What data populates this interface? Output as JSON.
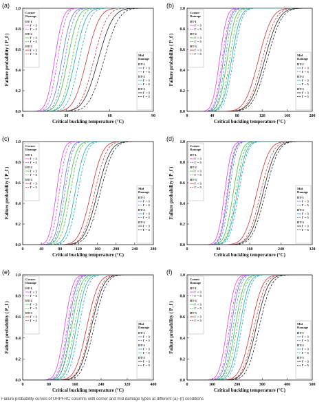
{
  "caption": "Failure probability curves of UHPFRC columns with corner and mid damage types at different (a)–(f) conditions",
  "legend": {
    "corner_title": [
      "Corner",
      "Damage"
    ],
    "mid_title": [
      "Mid",
      "Damage"
    ],
    "groups": [
      {
        "name": "DT-1",
        "items": [
          "l' = 3",
          "l' = 5"
        ]
      },
      {
        "name": "DT-2",
        "items": [
          "l' = 3",
          "l' = 5"
        ]
      },
      {
        "name": "DT-3",
        "items": [
          "l' = 3",
          "l' = 5"
        ]
      }
    ]
  },
  "colors": {
    "DT-1": "#e040e0",
    "DT-2": "#3fbf3f",
    "DT-3": "#d03030",
    "DT-1-mid": "#5a78d8",
    "DT-2-mid": "#20a8b0",
    "DT-3-mid": "#222222"
  },
  "chart_data": [
    {
      "panel": "(a)",
      "type": "line",
      "xlabel": "Critical buckling temperature (°C)",
      "ylabel": "Failure probability ( P_f )",
      "xlim": [
        0,
        90
      ],
      "ylim": [
        0,
        1.0
      ],
      "xticks": [
        0,
        30,
        60,
        90
      ],
      "yticks": [
        0.0,
        0.2,
        0.4,
        0.6,
        0.8,
        1.0
      ],
      "series": [
        {
          "group": "corner",
          "dt": "DT-1",
          "l": 3,
          "mean": 22,
          "sd": 4.5
        },
        {
          "group": "corner",
          "dt": "DT-1",
          "l": 5,
          "mean": 24,
          "sd": 4.5
        },
        {
          "group": "corner",
          "dt": "DT-2",
          "l": 3,
          "mean": 31,
          "sd": 5.5
        },
        {
          "group": "corner",
          "dt": "DT-2",
          "l": 5,
          "mean": 34,
          "sd": 5.5
        },
        {
          "group": "corner",
          "dt": "DT-3",
          "l": 3,
          "mean": 44,
          "sd": 7
        },
        {
          "group": "corner",
          "dt": "DT-3",
          "l": 5,
          "mean": 49,
          "sd": 7
        },
        {
          "group": "mid",
          "dt": "DT-1",
          "l": 3,
          "mean": 27,
          "sd": 5
        },
        {
          "group": "mid",
          "dt": "DT-1",
          "l": 5,
          "mean": 29,
          "sd": 5
        },
        {
          "group": "mid",
          "dt": "DT-2",
          "l": 3,
          "mean": 36,
          "sd": 6
        },
        {
          "group": "mid",
          "dt": "DT-2",
          "l": 5,
          "mean": 39,
          "sd": 6
        },
        {
          "group": "mid",
          "dt": "DT-3",
          "l": 3,
          "mean": 52,
          "sd": 8
        },
        {
          "group": "mid",
          "dt": "DT-3",
          "l": 5,
          "mean": 56,
          "sd": 8
        }
      ]
    },
    {
      "panel": "(b)",
      "type": "line",
      "xlabel": "Critical buckling temperature (°C)",
      "ylabel": "Failure probability ( P_f )",
      "xlim": [
        0,
        200
      ],
      "ylim": [
        0,
        1.0
      ],
      "xticks": [
        0,
        40,
        80,
        120,
        160,
        200
      ],
      "yticks": [
        0.0,
        0.2,
        0.4,
        0.6,
        0.8,
        1.0
      ],
      "series": [
        {
          "group": "corner",
          "dt": "DT-1",
          "l": 3,
          "mean": 52,
          "sd": 9
        },
        {
          "group": "corner",
          "dt": "DT-1",
          "l": 5,
          "mean": 56,
          "sd": 9
        },
        {
          "group": "corner",
          "dt": "DT-2",
          "l": 3,
          "mean": 64,
          "sd": 10
        },
        {
          "group": "corner",
          "dt": "DT-2",
          "l": 5,
          "mean": 68,
          "sd": 10
        },
        {
          "group": "corner",
          "dt": "DT-3",
          "l": 3,
          "mean": 114,
          "sd": 17
        },
        {
          "group": "corner",
          "dt": "DT-3",
          "l": 5,
          "mean": 120,
          "sd": 17
        },
        {
          "group": "mid",
          "dt": "DT-1",
          "l": 3,
          "mean": 58,
          "sd": 9
        },
        {
          "group": "mid",
          "dt": "DT-1",
          "l": 5,
          "mean": 61,
          "sd": 9
        },
        {
          "group": "mid",
          "dt": "DT-2",
          "l": 3,
          "mean": 71,
          "sd": 11
        },
        {
          "group": "mid",
          "dt": "DT-2",
          "l": 5,
          "mean": 74,
          "sd": 11
        },
        {
          "group": "mid",
          "dt": "DT-3",
          "l": 3,
          "mean": 124,
          "sd": 18
        },
        {
          "group": "mid",
          "dt": "DT-3",
          "l": 5,
          "mean": 128,
          "sd": 18
        }
      ]
    },
    {
      "panel": "(c)",
      "type": "line",
      "xlabel": "Critical buckling temperature (°C)",
      "ylabel": "Failure probability ( P_f )",
      "xlim": [
        0,
        280
      ],
      "ylim": [
        0,
        1.0
      ],
      "xticks": [
        0,
        40,
        80,
        120,
        160,
        200,
        240,
        280
      ],
      "yticks": [
        0.0,
        0.2,
        0.4,
        0.6,
        0.8,
        1.0
      ],
      "series": [
        {
          "group": "corner",
          "dt": "DT-1",
          "l": 3,
          "mean": 72,
          "sd": 12
        },
        {
          "group": "corner",
          "dt": "DT-1",
          "l": 5,
          "mean": 78,
          "sd": 12
        },
        {
          "group": "corner",
          "dt": "DT-2",
          "l": 3,
          "mean": 96,
          "sd": 15
        },
        {
          "group": "corner",
          "dt": "DT-2",
          "l": 5,
          "mean": 102,
          "sd": 15
        },
        {
          "group": "corner",
          "dt": "DT-3",
          "l": 3,
          "mean": 146,
          "sd": 20
        },
        {
          "group": "corner",
          "dt": "DT-3",
          "l": 5,
          "mean": 154,
          "sd": 20
        },
        {
          "group": "mid",
          "dt": "DT-1",
          "l": 3,
          "mean": 86,
          "sd": 13
        },
        {
          "group": "mid",
          "dt": "DT-1",
          "l": 5,
          "mean": 90,
          "sd": 13
        },
        {
          "group": "mid",
          "dt": "DT-2",
          "l": 3,
          "mean": 112,
          "sd": 16
        },
        {
          "group": "mid",
          "dt": "DT-2",
          "l": 5,
          "mean": 118,
          "sd": 16
        },
        {
          "group": "mid",
          "dt": "DT-3",
          "l": 3,
          "mean": 160,
          "sd": 22
        },
        {
          "group": "mid",
          "dt": "DT-3",
          "l": 5,
          "mean": 166,
          "sd": 22
        }
      ]
    },
    {
      "panel": "(d)",
      "type": "line",
      "xlabel": "Critical buckling temperature (°C)",
      "ylabel": "Failure probability ( P_f )",
      "xlim": [
        0,
        320
      ],
      "ylim": [
        0,
        1.0
      ],
      "xticks": [
        0,
        80,
        160,
        240,
        320
      ],
      "yticks": [
        0.0,
        0.2,
        0.4,
        0.6,
        0.8,
        1.0
      ],
      "series": [
        {
          "group": "corner",
          "dt": "DT-1",
          "l": 3,
          "mean": 96,
          "sd": 14
        },
        {
          "group": "corner",
          "dt": "DT-1",
          "l": 5,
          "mean": 102,
          "sd": 14
        },
        {
          "group": "corner",
          "dt": "DT-2",
          "l": 3,
          "mean": 118,
          "sd": 17
        },
        {
          "group": "corner",
          "dt": "DT-2",
          "l": 5,
          "mean": 124,
          "sd": 17
        },
        {
          "group": "corner",
          "dt": "DT-3",
          "l": 3,
          "mean": 178,
          "sd": 25
        },
        {
          "group": "corner",
          "dt": "DT-3",
          "l": 5,
          "mean": 188,
          "sd": 25
        },
        {
          "group": "mid",
          "dt": "DT-1",
          "l": 3,
          "mean": 104,
          "sd": 14
        },
        {
          "group": "mid",
          "dt": "DT-1",
          "l": 5,
          "mean": 108,
          "sd": 14
        },
        {
          "group": "mid",
          "dt": "DT-2",
          "l": 3,
          "mean": 128,
          "sd": 18
        },
        {
          "group": "mid",
          "dt": "DT-2",
          "l": 5,
          "mean": 132,
          "sd": 18
        },
        {
          "group": "mid",
          "dt": "DT-3",
          "l": 3,
          "mean": 194,
          "sd": 26
        },
        {
          "group": "mid",
          "dt": "DT-3",
          "l": 5,
          "mean": 200,
          "sd": 26
        }
      ]
    },
    {
      "panel": "(e)",
      "type": "line",
      "xlabel": "Critical buckling temperature (°C)",
      "ylabel": "Failure probability ( P_f )",
      "xlim": [
        0,
        400
      ],
      "ylim": [
        0,
        1.0
      ],
      "xticks": [
        0,
        80,
        160,
        240,
        320,
        400
      ],
      "yticks": [
        0.0,
        0.2,
        0.4,
        0.6,
        0.8,
        1.0
      ],
      "series": [
        {
          "group": "corner",
          "dt": "DT-1",
          "l": 3,
          "mean": 128,
          "sd": 20
        },
        {
          "group": "corner",
          "dt": "DT-1",
          "l": 5,
          "mean": 136,
          "sd": 20
        },
        {
          "group": "corner",
          "dt": "DT-2",
          "l": 3,
          "mean": 150,
          "sd": 22
        },
        {
          "group": "corner",
          "dt": "DT-2",
          "l": 5,
          "mean": 158,
          "sd": 22
        },
        {
          "group": "corner",
          "dt": "DT-3",
          "l": 3,
          "mean": 196,
          "sd": 28
        },
        {
          "group": "corner",
          "dt": "DT-3",
          "l": 5,
          "mean": 206,
          "sd": 28
        },
        {
          "group": "mid",
          "dt": "DT-1",
          "l": 3,
          "mean": 140,
          "sd": 20
        },
        {
          "group": "mid",
          "dt": "DT-1",
          "l": 5,
          "mean": 146,
          "sd": 20
        },
        {
          "group": "mid",
          "dt": "DT-2",
          "l": 3,
          "mean": 164,
          "sd": 23
        },
        {
          "group": "mid",
          "dt": "DT-2",
          "l": 5,
          "mean": 172,
          "sd": 23
        },
        {
          "group": "mid",
          "dt": "DT-3",
          "l": 3,
          "mean": 210,
          "sd": 29
        },
        {
          "group": "mid",
          "dt": "DT-3",
          "l": 5,
          "mean": 218,
          "sd": 29
        }
      ]
    },
    {
      "panel": "(f)",
      "type": "line",
      "xlabel": "Critical buckling temperature (°C)",
      "ylabel": "Failure probability ( P_f )",
      "xlim": [
        0,
        500
      ],
      "ylim": [
        0,
        1.0
      ],
      "xticks": [
        0,
        100,
        200,
        300,
        400,
        500
      ],
      "yticks": [
        0.0,
        0.2,
        0.4,
        0.6,
        0.8,
        1.0
      ],
      "series": [
        {
          "group": "corner",
          "dt": "DT-1",
          "l": 3,
          "mean": 160,
          "sd": 25
        },
        {
          "group": "corner",
          "dt": "DT-1",
          "l": 5,
          "mean": 170,
          "sd": 25
        },
        {
          "group": "corner",
          "dt": "DT-2",
          "l": 3,
          "mean": 192,
          "sd": 28
        },
        {
          "group": "corner",
          "dt": "DT-2",
          "l": 5,
          "mean": 200,
          "sd": 28
        },
        {
          "group": "corner",
          "dt": "DT-3",
          "l": 3,
          "mean": 256,
          "sd": 36
        },
        {
          "group": "corner",
          "dt": "DT-3",
          "l": 5,
          "mean": 268,
          "sd": 36
        },
        {
          "group": "mid",
          "dt": "DT-1",
          "l": 3,
          "mean": 176,
          "sd": 25
        },
        {
          "group": "mid",
          "dt": "DT-1",
          "l": 5,
          "mean": 184,
          "sd": 25
        },
        {
          "group": "mid",
          "dt": "DT-2",
          "l": 3,
          "mean": 210,
          "sd": 29
        },
        {
          "group": "mid",
          "dt": "DT-2",
          "l": 5,
          "mean": 218,
          "sd": 29
        },
        {
          "group": "mid",
          "dt": "DT-3",
          "l": 3,
          "mean": 276,
          "sd": 38
        },
        {
          "group": "mid",
          "dt": "DT-3",
          "l": 5,
          "mean": 288,
          "sd": 38
        }
      ]
    }
  ]
}
